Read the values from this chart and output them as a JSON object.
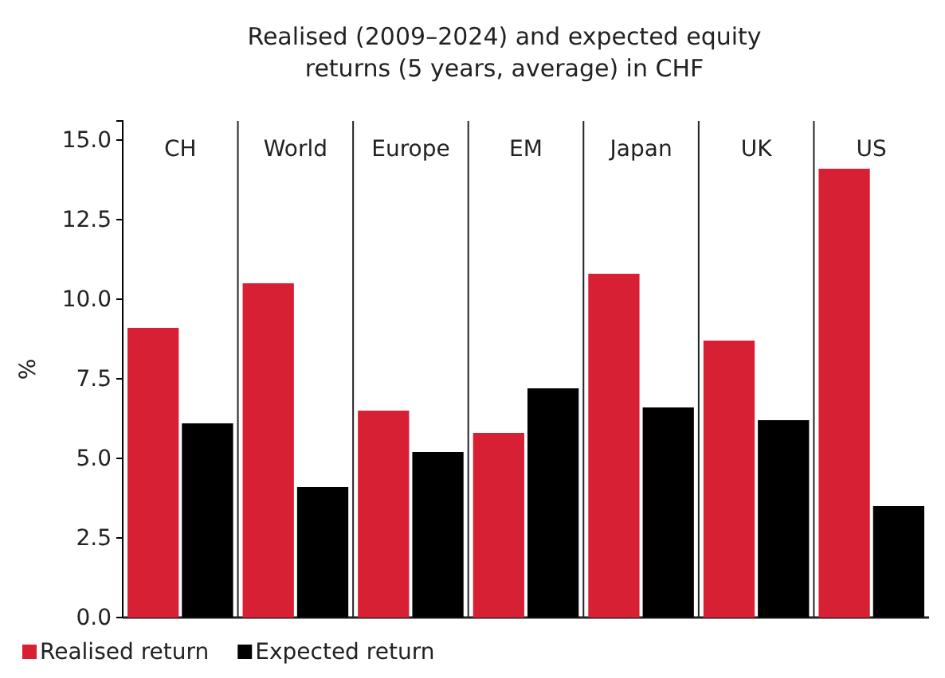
{
  "chart_data": {
    "type": "bar",
    "title": "Realised (2009–2024) and expected equity returns (5 years, average) in CHF",
    "ylabel": "%",
    "categories": [
      "CH",
      "World",
      "Europe",
      "EM",
      "Japan",
      "UK",
      "US"
    ],
    "series": [
      {
        "name": "Realised return",
        "color": "#d82034",
        "values": [
          9.1,
          10.5,
          6.5,
          5.8,
          10.8,
          8.7,
          14.1
        ]
      },
      {
        "name": "Expected return",
        "color": "#000000",
        "values": [
          6.1,
          4.1,
          5.2,
          7.2,
          6.6,
          6.2,
          3.5
        ]
      }
    ],
    "ylim": [
      0,
      15.6
    ],
    "yticks": [
      {
        "value": 0,
        "label": "0.0"
      },
      {
        "value": 2.5,
        "label": "2.5"
      },
      {
        "value": 5,
        "label": "5.0"
      },
      {
        "value": 7.5,
        "label": "7.5"
      },
      {
        "value": 10,
        "label": "10.0"
      },
      {
        "value": 12.5,
        "label": "12.5"
      },
      {
        "value": 15,
        "label": "15.0"
      }
    ],
    "grid": false,
    "legend": "bottom left"
  }
}
